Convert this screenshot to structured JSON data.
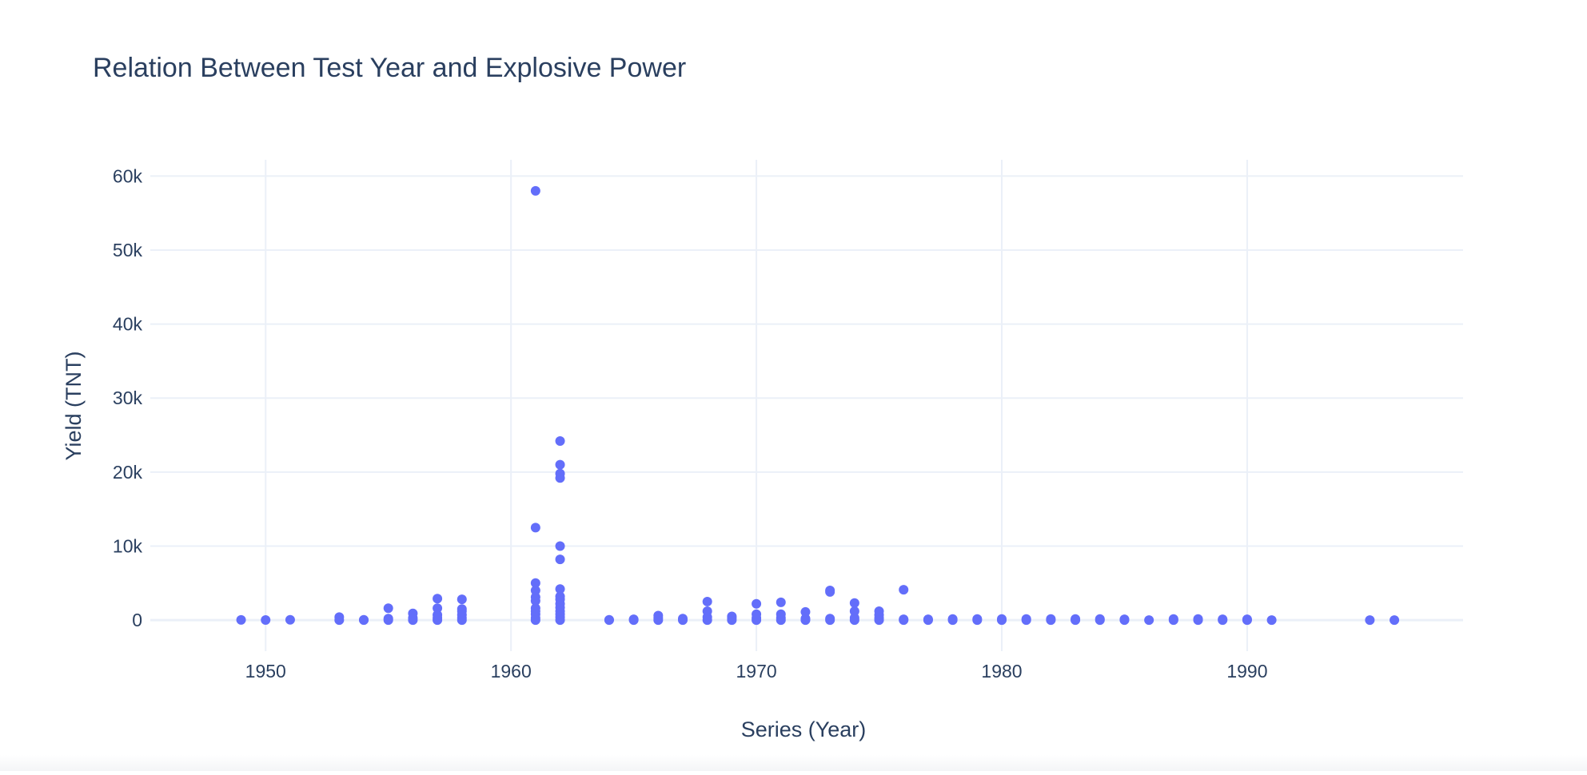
{
  "chart_data": {
    "type": "scatter",
    "title": "Relation Between Test Year and Explosive Power",
    "xlabel": "Series (Year)",
    "ylabel": "Yield (TNT)",
    "xlim": [
      1945.3,
      1998.8
    ],
    "ylim": [
      -4200,
      62200
    ],
    "xticks": [
      1950,
      1960,
      1970,
      1980,
      1990
    ],
    "xtick_labels": [
      "1950",
      "1960",
      "1970",
      "1980",
      "1990"
    ],
    "yticks": [
      0,
      10000,
      20000,
      30000,
      40000,
      50000,
      60000
    ],
    "ytick_labels": [
      "0",
      "10k",
      "20k",
      "30k",
      "40k",
      "50k",
      "60k"
    ],
    "grid": true,
    "marker_color": "#636efa",
    "grid_color": "#ebf0f8",
    "zeroline_color": "#ebf0f8",
    "text_color": "#2a3f5f",
    "points": [
      {
        "x": 1949,
        "y": 20
      },
      {
        "x": 1950,
        "y": 10
      },
      {
        "x": 1951,
        "y": 40
      },
      {
        "x": 1953,
        "y": 0
      },
      {
        "x": 1953,
        "y": 400
      },
      {
        "x": 1954,
        "y": 0
      },
      {
        "x": 1954,
        "y": 40
      },
      {
        "x": 1955,
        "y": 0
      },
      {
        "x": 1955,
        "y": 200
      },
      {
        "x": 1955,
        "y": 1600
      },
      {
        "x": 1956,
        "y": 0
      },
      {
        "x": 1956,
        "y": 300
      },
      {
        "x": 1956,
        "y": 900
      },
      {
        "x": 1957,
        "y": 0
      },
      {
        "x": 1957,
        "y": 300
      },
      {
        "x": 1957,
        "y": 700
      },
      {
        "x": 1957,
        "y": 1600
      },
      {
        "x": 1957,
        "y": 2900
      },
      {
        "x": 1958,
        "y": 0
      },
      {
        "x": 1958,
        "y": 300
      },
      {
        "x": 1958,
        "y": 700
      },
      {
        "x": 1958,
        "y": 1200
      },
      {
        "x": 1958,
        "y": 1500
      },
      {
        "x": 1958,
        "y": 2800
      },
      {
        "x": 1961,
        "y": 0
      },
      {
        "x": 1961,
        "y": 300
      },
      {
        "x": 1961,
        "y": 800
      },
      {
        "x": 1961,
        "y": 1200
      },
      {
        "x": 1961,
        "y": 1600
      },
      {
        "x": 1961,
        "y": 2600
      },
      {
        "x": 1961,
        "y": 3100
      },
      {
        "x": 1961,
        "y": 4000
      },
      {
        "x": 1961,
        "y": 5000
      },
      {
        "x": 1961,
        "y": 12500
      },
      {
        "x": 1961,
        "y": 58000
      },
      {
        "x": 1962,
        "y": 0
      },
      {
        "x": 1962,
        "y": 400
      },
      {
        "x": 1962,
        "y": 800
      },
      {
        "x": 1962,
        "y": 1200
      },
      {
        "x": 1962,
        "y": 1700
      },
      {
        "x": 1962,
        "y": 2200
      },
      {
        "x": 1962,
        "y": 2800
      },
      {
        "x": 1962,
        "y": 3200
      },
      {
        "x": 1962,
        "y": 4200
      },
      {
        "x": 1962,
        "y": 8200
      },
      {
        "x": 1962,
        "y": 10000
      },
      {
        "x": 1962,
        "y": 19200
      },
      {
        "x": 1962,
        "y": 19800
      },
      {
        "x": 1962,
        "y": 21000
      },
      {
        "x": 1962,
        "y": 24200
      },
      {
        "x": 1964,
        "y": 0
      },
      {
        "x": 1964,
        "y": 40
      },
      {
        "x": 1965,
        "y": 0
      },
      {
        "x": 1965,
        "y": 100
      },
      {
        "x": 1966,
        "y": 0
      },
      {
        "x": 1966,
        "y": 300
      },
      {
        "x": 1966,
        "y": 600
      },
      {
        "x": 1967,
        "y": 0
      },
      {
        "x": 1967,
        "y": 200
      },
      {
        "x": 1968,
        "y": 0
      },
      {
        "x": 1968,
        "y": 400
      },
      {
        "x": 1968,
        "y": 1200
      },
      {
        "x": 1968,
        "y": 2500
      },
      {
        "x": 1969,
        "y": 0
      },
      {
        "x": 1969,
        "y": 300
      },
      {
        "x": 1969,
        "y": 500
      },
      {
        "x": 1970,
        "y": 0
      },
      {
        "x": 1970,
        "y": 300
      },
      {
        "x": 1970,
        "y": 800
      },
      {
        "x": 1970,
        "y": 2200
      },
      {
        "x": 1971,
        "y": 0
      },
      {
        "x": 1971,
        "y": 300
      },
      {
        "x": 1971,
        "y": 800
      },
      {
        "x": 1971,
        "y": 2400
      },
      {
        "x": 1972,
        "y": 0
      },
      {
        "x": 1972,
        "y": 200
      },
      {
        "x": 1972,
        "y": 1100
      },
      {
        "x": 1973,
        "y": 0
      },
      {
        "x": 1973,
        "y": 200
      },
      {
        "x": 1973,
        "y": 3800
      },
      {
        "x": 1973,
        "y": 4000
      },
      {
        "x": 1974,
        "y": 0
      },
      {
        "x": 1974,
        "y": 300
      },
      {
        "x": 1974,
        "y": 1200
      },
      {
        "x": 1974,
        "y": 2300
      },
      {
        "x": 1975,
        "y": 0
      },
      {
        "x": 1975,
        "y": 300
      },
      {
        "x": 1975,
        "y": 700
      },
      {
        "x": 1975,
        "y": 1200
      },
      {
        "x": 1976,
        "y": 0
      },
      {
        "x": 1976,
        "y": 100
      },
      {
        "x": 1976,
        "y": 4100
      },
      {
        "x": 1977,
        "y": 0
      },
      {
        "x": 1977,
        "y": 100
      },
      {
        "x": 1978,
        "y": 0
      },
      {
        "x": 1978,
        "y": 150
      },
      {
        "x": 1979,
        "y": 0
      },
      {
        "x": 1979,
        "y": 150
      },
      {
        "x": 1980,
        "y": 0
      },
      {
        "x": 1980,
        "y": 150
      },
      {
        "x": 1981,
        "y": 0
      },
      {
        "x": 1981,
        "y": 150
      },
      {
        "x": 1982,
        "y": 0
      },
      {
        "x": 1982,
        "y": 150
      },
      {
        "x": 1983,
        "y": 0
      },
      {
        "x": 1983,
        "y": 150
      },
      {
        "x": 1984,
        "y": 0
      },
      {
        "x": 1984,
        "y": 150
      },
      {
        "x": 1985,
        "y": 0
      },
      {
        "x": 1985,
        "y": 100
      },
      {
        "x": 1986,
        "y": 0
      },
      {
        "x": 1987,
        "y": 0
      },
      {
        "x": 1987,
        "y": 150
      },
      {
        "x": 1988,
        "y": 0
      },
      {
        "x": 1988,
        "y": 150
      },
      {
        "x": 1989,
        "y": 0
      },
      {
        "x": 1989,
        "y": 100
      },
      {
        "x": 1990,
        "y": 0
      },
      {
        "x": 1990,
        "y": 100
      },
      {
        "x": 1991,
        "y": 0
      },
      {
        "x": 1995,
        "y": 0
      },
      {
        "x": 1996,
        "y": 0
      }
    ]
  }
}
